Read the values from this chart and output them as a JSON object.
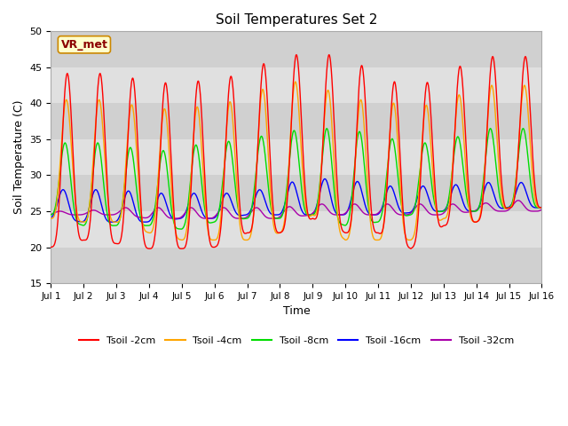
{
  "title": "Soil Temperatures Set 2",
  "xlabel": "Time",
  "ylabel": "Soil Temperature (C)",
  "ylim": [
    15,
    50
  ],
  "xlim": [
    0,
    15
  ],
  "xtick_labels": [
    "Jul 1",
    "Jul 2",
    "Jul 3",
    "Jul 4",
    "Jul 5",
    "Jul 6",
    "Jul 7",
    "Jul 8",
    "Jul 9",
    "Jul 10",
    "Jul 11",
    "Jul 12",
    "Jul 13",
    "Jul 14",
    "Jul 15",
    "Jul 16"
  ],
  "xtick_positions": [
    0,
    1,
    2,
    3,
    4,
    5,
    6,
    7,
    8,
    9,
    10,
    11,
    12,
    13,
    14,
    15
  ],
  "ytick_positions": [
    15,
    20,
    25,
    30,
    35,
    40,
    45,
    50
  ],
  "colors": {
    "tsoil_2cm": "#ff0000",
    "tsoil_4cm": "#ffa500",
    "tsoil_8cm": "#00dd00",
    "tsoil_16cm": "#0000ff",
    "tsoil_32cm": "#aa00aa"
  },
  "legend_labels": [
    "Tsoil -2cm",
    "Tsoil -4cm",
    "Tsoil -8cm",
    "Tsoil -16cm",
    "Tsoil -32cm"
  ],
  "annotation_text": "VR_met",
  "fig_bg": "#ffffff",
  "plot_bg": "#d8d8d8",
  "band_colors": [
    "#d0d0d0",
    "#e0e0e0"
  ],
  "n_days": 15,
  "points_per_day": 144,
  "daily_max_2cm": [
    44.5,
    43.8,
    44.5,
    42.5,
    43.2,
    43.0,
    44.5,
    46.5,
    47.0,
    46.5,
    44.0,
    42.0,
    43.8,
    46.5,
    46.5
  ],
  "daily_min_2cm": [
    20.0,
    21.0,
    20.5,
    19.8,
    19.8,
    20.0,
    22.0,
    22.0,
    24.0,
    22.0,
    22.0,
    19.8,
    23.0,
    23.5,
    25.5
  ],
  "daily_max_4cm": [
    40.5,
    40.5,
    40.5,
    39.0,
    39.5,
    39.5,
    41.0,
    43.0,
    43.0,
    40.5,
    40.5,
    39.5,
    40.0,
    42.5,
    42.5
  ],
  "daily_min_4cm": [
    24.0,
    23.5,
    23.5,
    22.0,
    21.0,
    21.0,
    21.0,
    22.0,
    24.5,
    21.0,
    21.0,
    21.0,
    24.0,
    23.5,
    25.5
  ],
  "daily_max_8cm": [
    34.5,
    34.5,
    34.5,
    33.0,
    34.0,
    34.5,
    35.0,
    36.0,
    36.5,
    36.5,
    35.5,
    34.5,
    34.5,
    36.5,
    36.5
  ],
  "daily_min_8cm": [
    24.5,
    23.0,
    23.0,
    23.0,
    22.5,
    23.5,
    24.0,
    24.0,
    24.5,
    23.0,
    23.5,
    24.5,
    25.0,
    25.0,
    25.5
  ],
  "daily_max_16cm": [
    28.0,
    28.0,
    28.0,
    27.5,
    27.5,
    27.5,
    27.5,
    28.8,
    29.5,
    29.5,
    28.5,
    28.5,
    28.5,
    29.0,
    29.0
  ],
  "daily_min_16cm": [
    24.0,
    23.5,
    23.5,
    23.5,
    24.0,
    24.0,
    24.5,
    24.5,
    24.5,
    24.5,
    24.5,
    24.8,
    25.0,
    25.0,
    25.5
  ],
  "daily_max_32cm": [
    25.0,
    25.0,
    25.5,
    25.5,
    25.5,
    25.5,
    25.5,
    25.5,
    26.0,
    26.0,
    26.0,
    26.0,
    26.0,
    26.0,
    26.5
  ],
  "daily_min_32cm": [
    24.5,
    24.5,
    24.5,
    24.0,
    24.0,
    24.0,
    24.0,
    24.0,
    24.5,
    24.5,
    24.5,
    24.5,
    24.5,
    25.0,
    25.0
  ],
  "phase_shifts": [
    0.0,
    0.03,
    0.07,
    0.13,
    0.22
  ]
}
